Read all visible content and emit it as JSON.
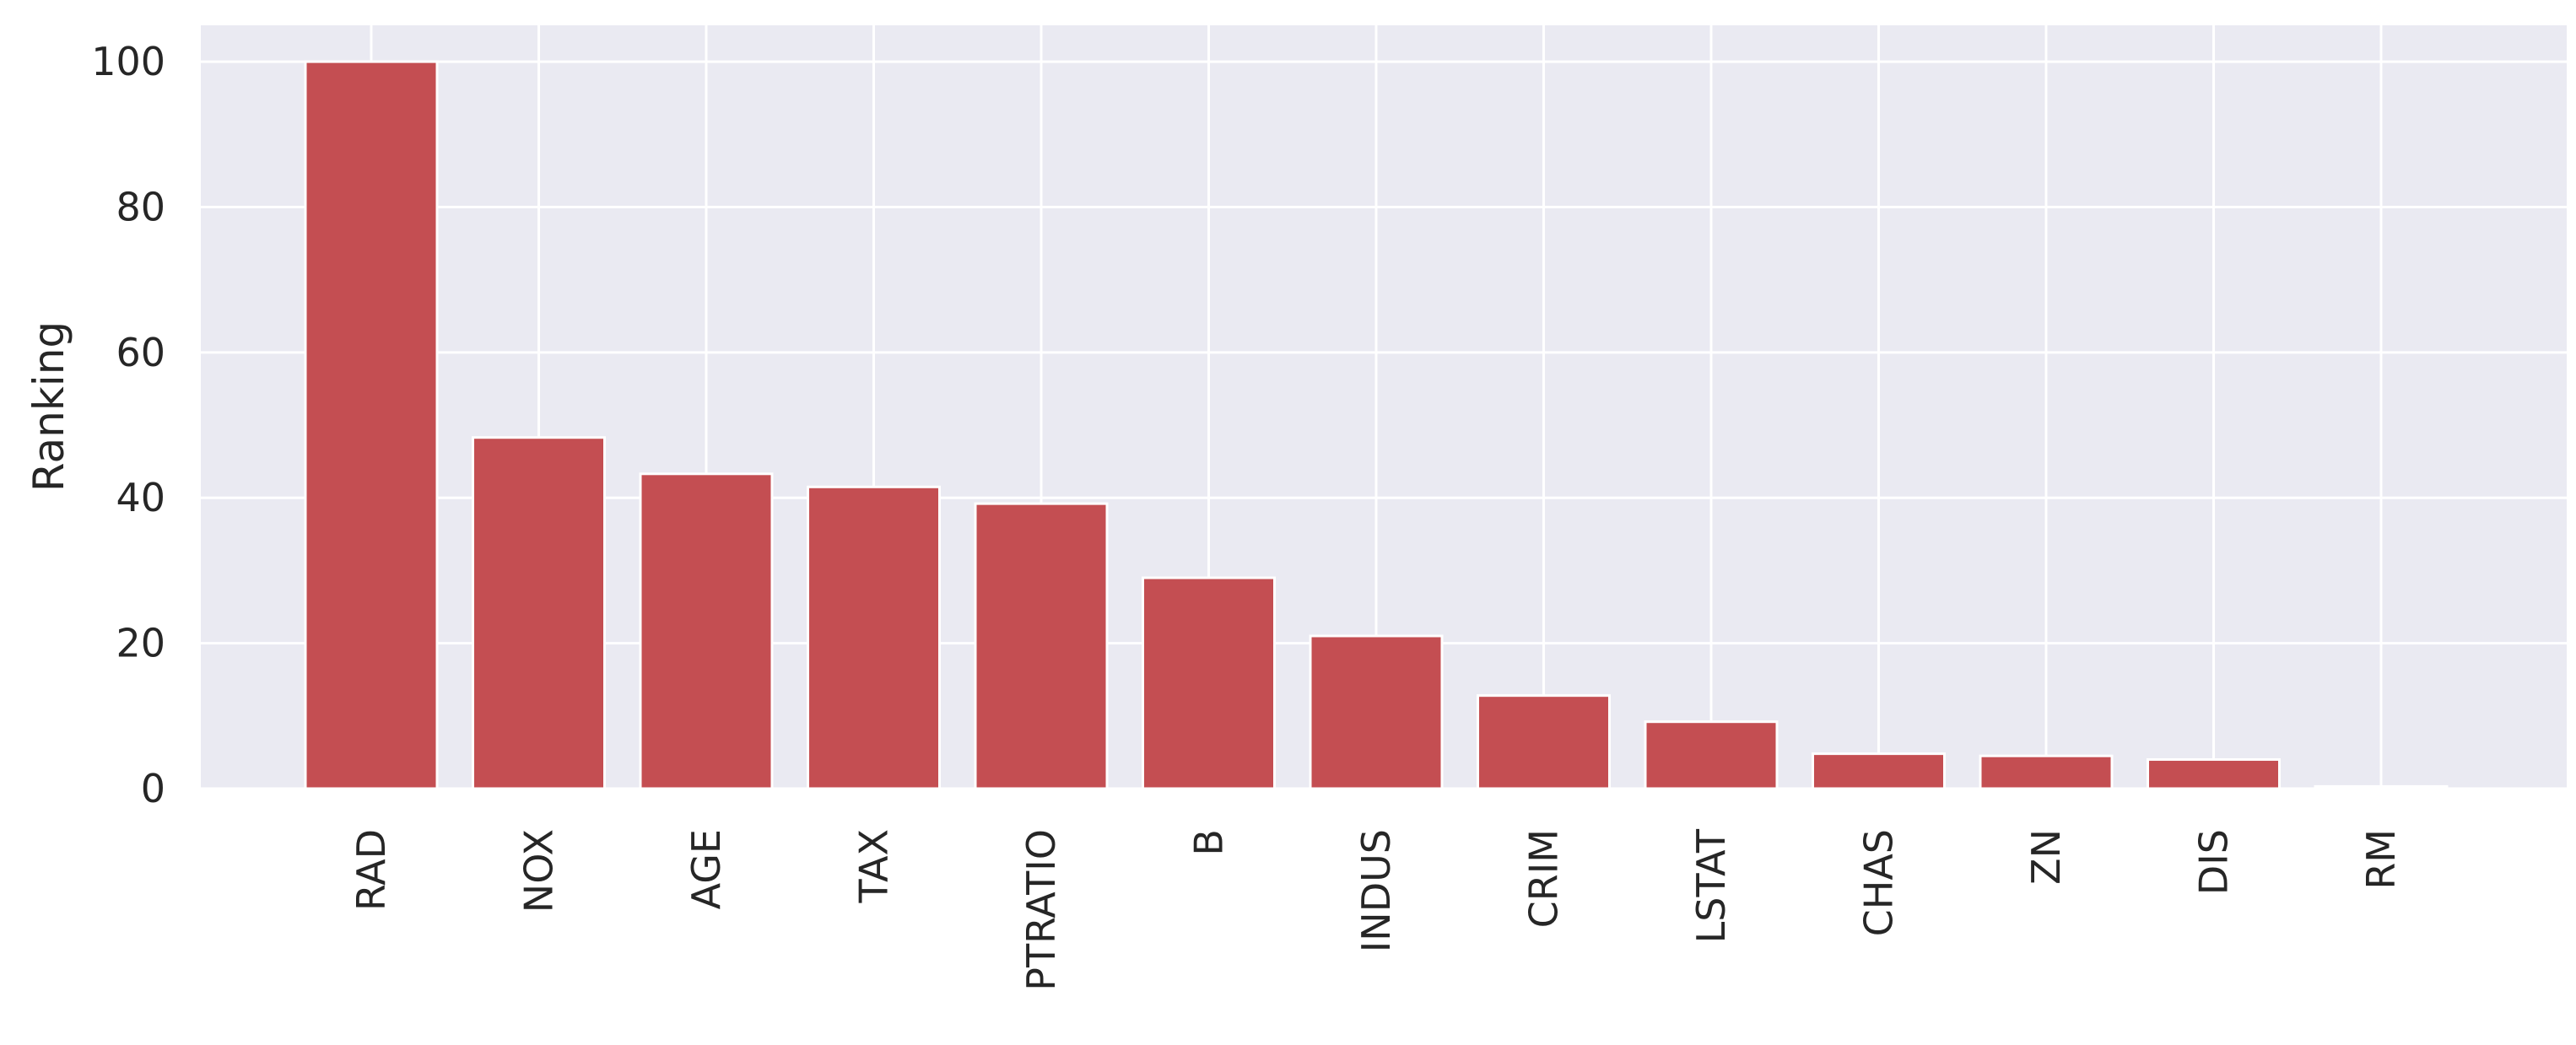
{
  "chart_data": {
    "type": "bar",
    "title": "",
    "xlabel": "",
    "ylabel": "Ranking",
    "categories": [
      "RAD",
      "NOX",
      "AGE",
      "TAX",
      "PTRATIO",
      "B",
      "INDUS",
      "CRIM",
      "LSTAT",
      "CHAS",
      "ZN",
      "DIS",
      "RM"
    ],
    "values": [
      100,
      48.3,
      43.3,
      41.5,
      39.2,
      29,
      21,
      12.8,
      9.2,
      4.8,
      4.5,
      4,
      0.3
    ],
    "ylim": [
      0,
      105
    ],
    "yticks": [
      0,
      20,
      40,
      60,
      80,
      100
    ],
    "grid": true,
    "colors": {
      "bar": "#c44e52",
      "background": "#eaeaf2",
      "grid": "#ffffff",
      "text": "#262626"
    }
  }
}
